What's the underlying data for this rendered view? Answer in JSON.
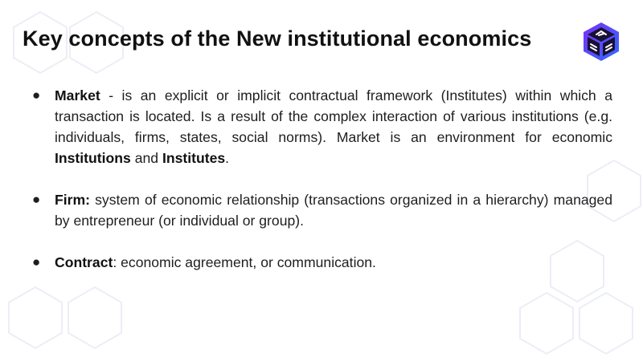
{
  "title": "Key concepts of the New institutional economics",
  "logo_icon": "cube-logo-icon",
  "bullet_glyph": "●",
  "bullets": [
    {
      "term": "Market",
      "text1": " - is an explicit or implicit contractual framework (Institutes) within which a transaction is located. Is a result of the complex interaction of various institutions (e.g. individuals, firms, states, social norms). Market is an environment for economic ",
      "bold2": "Institutions",
      "text2": " and ",
      "bold3": "Institutes",
      "text3": "."
    },
    {
      "term": "Firm:",
      "text1": " system of economic relationship (transactions organized in a hierarchy) managed by entrepreneur (or individual or group)."
    },
    {
      "term": "Contract",
      "text1": ": economic agreement, or communication."
    }
  ],
  "colors": {
    "hex_outline": "#eceef6",
    "logo_purple": "#7b2ff7",
    "logo_blue": "#2f6bff",
    "logo_dark": "#1a1033"
  }
}
